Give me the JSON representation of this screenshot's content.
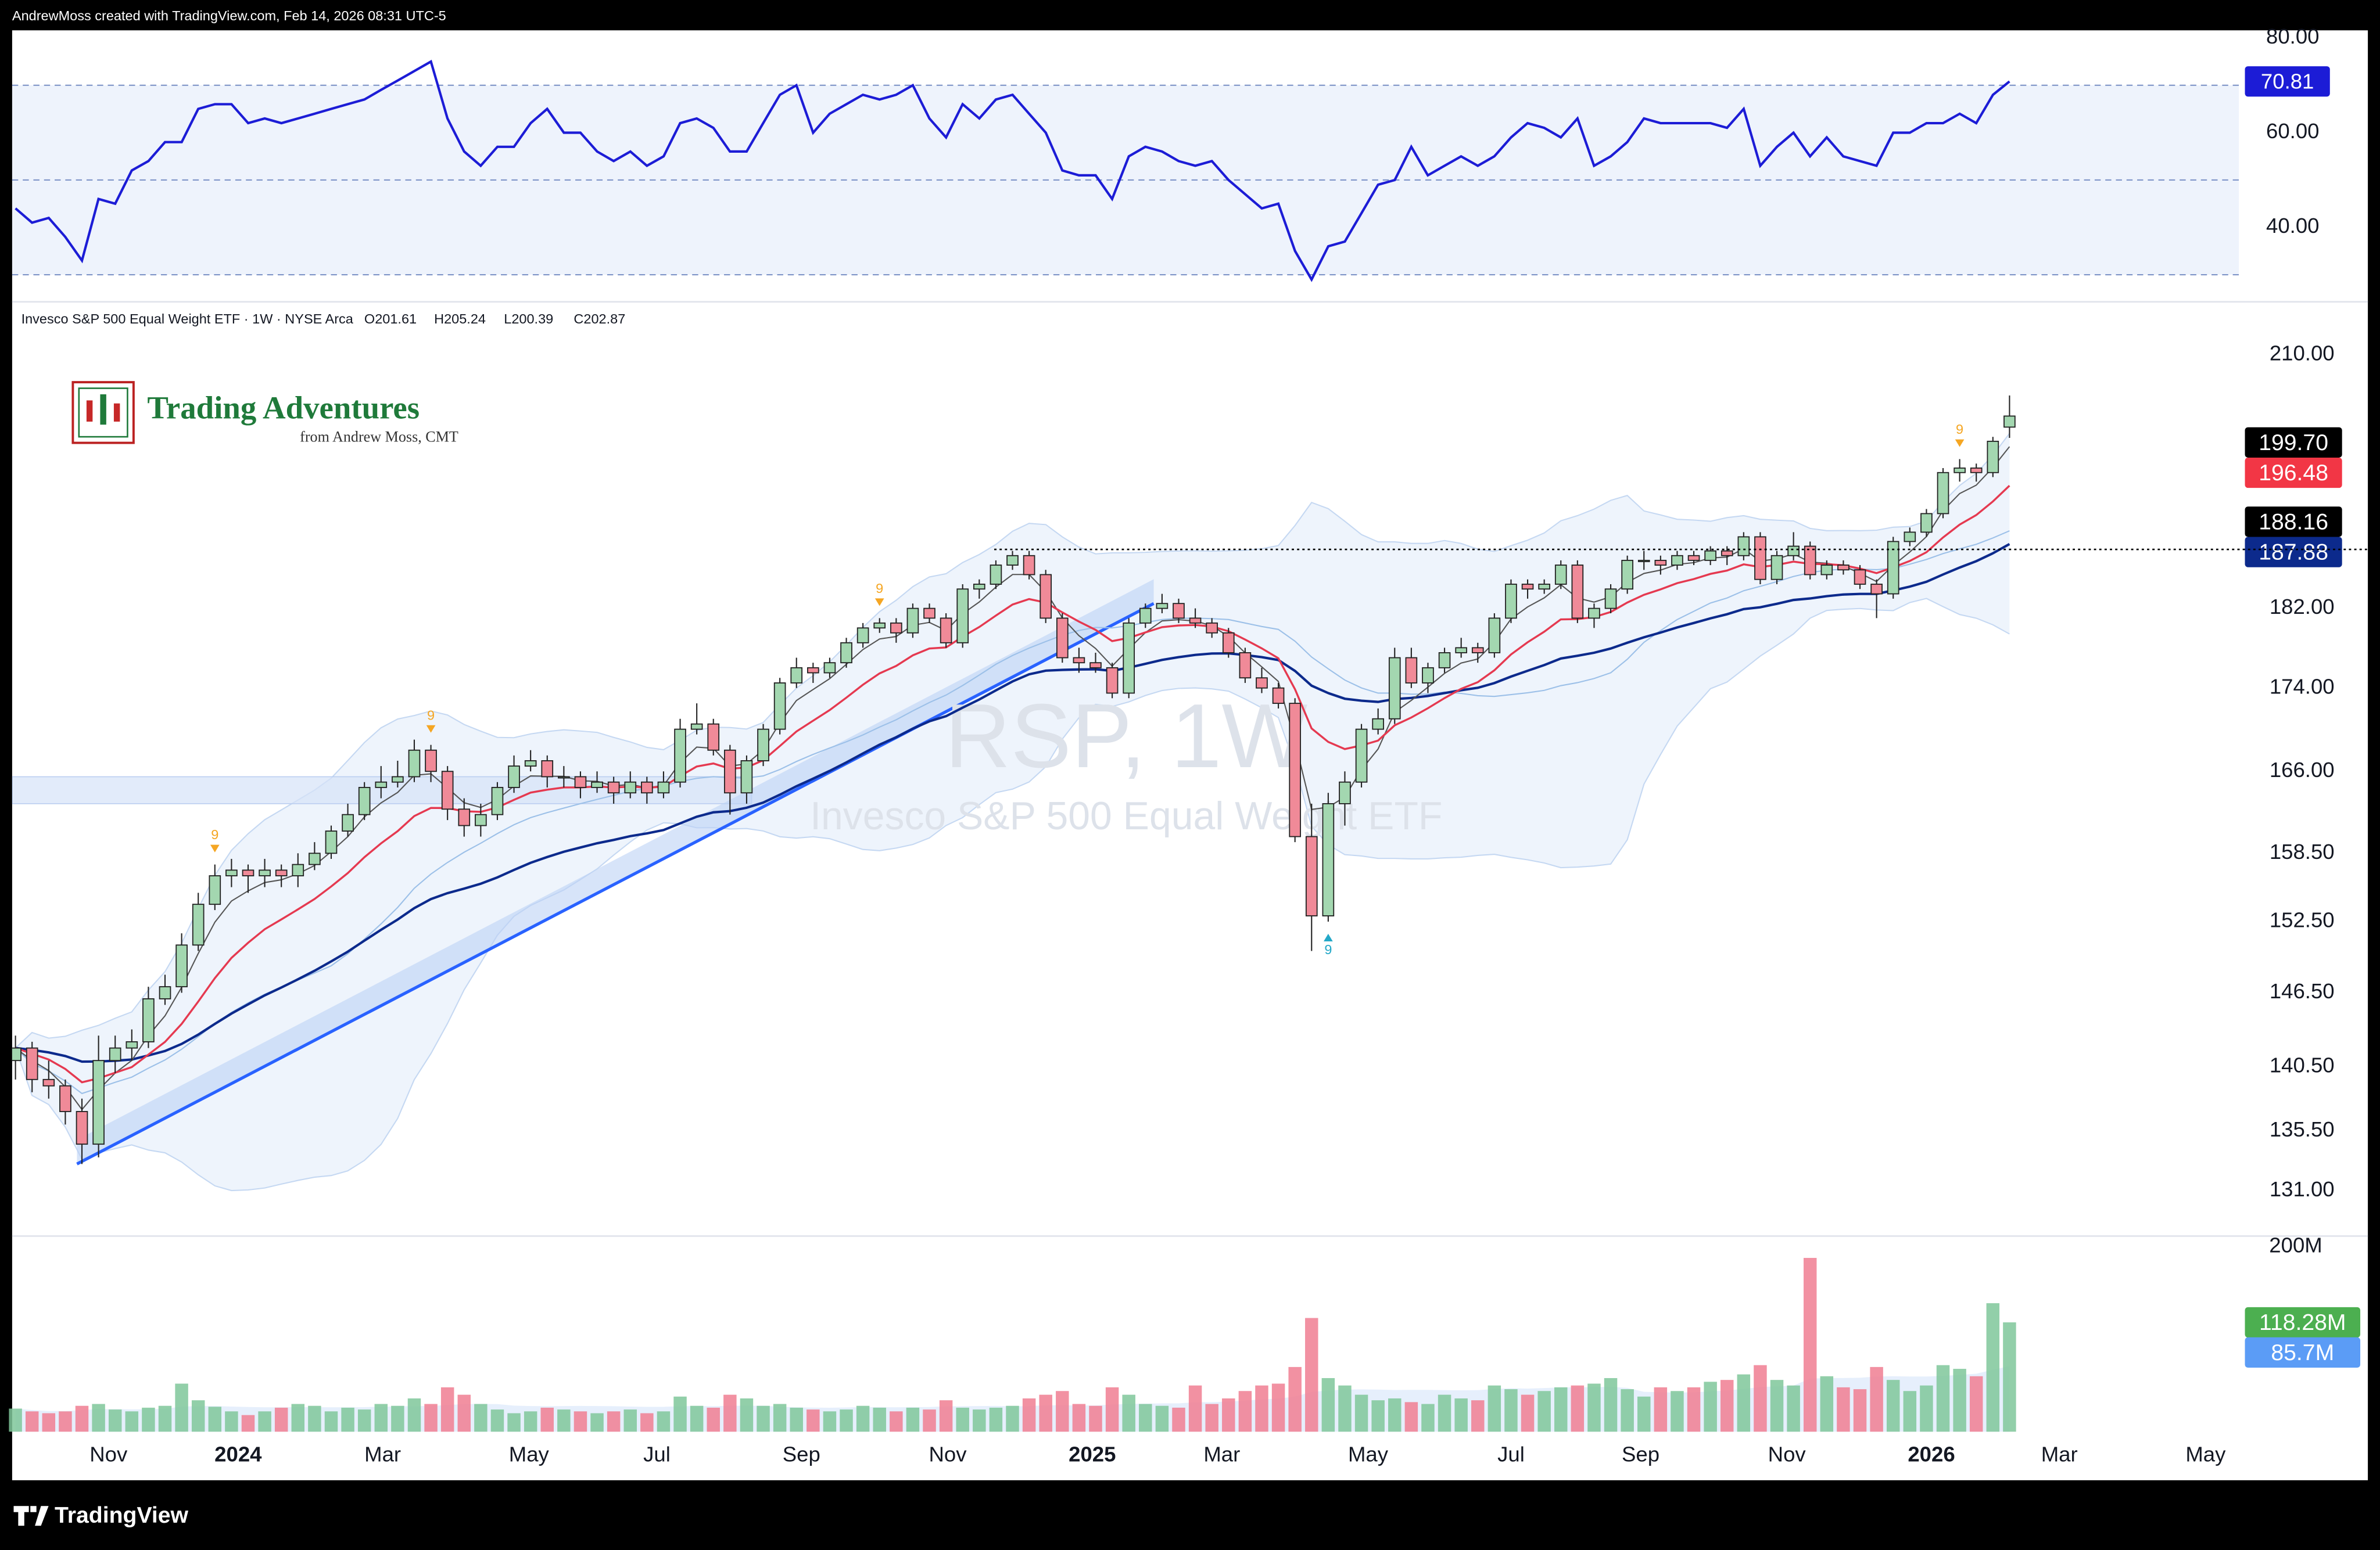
{
  "chart_data": {
    "type": "candlestick",
    "header": "AndrewMoss created with TradingView.com, Feb 14, 2026 08:31 UTC-5",
    "title": "Invesco S&P 500 Equal Weight ETF · 1W · NYSE Arca",
    "ohlc_legend": [
      "O201.61",
      "H205.24",
      "L200.39",
      "C202.87"
    ],
    "watermark": [
      "RSP, 1W",
      "Invesco S&P 500 Equal Weight ETF"
    ],
    "logo": {
      "title": "Trading Adventures",
      "subtitle": "from Andrew Moss, CMT"
    },
    "footer": "TradingView",
    "log_scale": true,
    "up_color": "#a3d7b0",
    "down_color": "#f08a98",
    "xlim": [
      -0.2,
      133.8
    ],
    "xticks": [
      {
        "value": 5.6,
        "label": "Nov"
      },
      {
        "value": 13.4,
        "label": "2024"
      },
      {
        "value": 22.1,
        "label": "Mar"
      },
      {
        "value": 30.9,
        "label": "May"
      },
      {
        "value": 38.6,
        "label": "Jul"
      },
      {
        "value": 47.3,
        "label": "Sep"
      },
      {
        "value": 56.1,
        "label": "Nov"
      },
      {
        "value": 64.8,
        "label": "2025"
      },
      {
        "value": 72.6,
        "label": "Mar"
      },
      {
        "value": 81.4,
        "label": "May"
      },
      {
        "value": 90.0,
        "label": "Jul"
      },
      {
        "value": 97.8,
        "label": "Sep"
      },
      {
        "value": 106.6,
        "label": "Nov"
      },
      {
        "value": 115.3,
        "label": "2026"
      },
      {
        "value": 123.0,
        "label": "Mar"
      },
      {
        "value": 131.8,
        "label": "May"
      }
    ],
    "ylim": [
      127.7,
      216.2
    ],
    "yticks": [
      {
        "value": 210,
        "label": "210.00"
      },
      {
        "value": 182,
        "label": "182.00"
      },
      {
        "value": 174,
        "label": "174.00"
      },
      {
        "value": 166,
        "label": "166.00"
      },
      {
        "value": 158.5,
        "label": "158.50"
      },
      {
        "value": 152.5,
        "label": "152.50"
      },
      {
        "value": 146.5,
        "label": "146.50"
      },
      {
        "value": 140.5,
        "label": "140.50"
      },
      {
        "value": 135.5,
        "label": "135.50"
      },
      {
        "value": 131,
        "label": "131.00"
      }
    ],
    "price_labels": [
      {
        "value": 199.7,
        "label": "199.70",
        "color": "#000000"
      },
      {
        "value": 196.48,
        "label": "196.48",
        "color": "#f23645"
      },
      {
        "value": 188.16,
        "label": "188.16",
        "color": "#000000"
      },
      {
        "value": 187.88,
        "label": "187.88",
        "color": "#0c2a8c"
      }
    ],
    "level_start": 58.9,
    "trendline": [
      [
        3.7,
        133
      ],
      [
        68.5,
        182.5
      ]
    ],
    "zone": {
      "x": [
        -0.2,
        44.3
      ],
      "y": [
        163,
        165.5
      ]
    },
    "td_marks": [
      {
        "x": 12,
        "count": 9,
        "pos": "above"
      },
      {
        "x": 25,
        "count": 9,
        "pos": "above"
      },
      {
        "x": 52,
        "count": 9,
        "pos": "above"
      },
      {
        "x": 117,
        "count": 9,
        "pos": "above"
      },
      {
        "x": 79,
        "count": 9,
        "pos": "below"
      }
    ],
    "ohlc": [
      [
        141,
        143,
        139.5,
        142
      ],
      [
        142,
        142.5,
        138.5,
        139.5
      ],
      [
        139.5,
        141,
        138,
        139
      ],
      [
        139,
        139.5,
        136,
        137
      ],
      [
        137,
        138,
        133,
        134.5
      ],
      [
        134.5,
        143,
        133.5,
        141
      ],
      [
        141,
        143,
        140,
        142
      ],
      [
        142,
        143.5,
        141,
        142.5
      ],
      [
        142.5,
        147,
        142,
        146
      ],
      [
        146,
        148,
        145.5,
        147
      ],
      [
        147,
        151.5,
        146.5,
        150.5
      ],
      [
        150.5,
        155,
        150,
        154
      ],
      [
        154,
        157.5,
        153.5,
        156.5
      ],
      [
        156.5,
        158,
        155.5,
        157
      ],
      [
        157,
        157.5,
        155,
        156.5
      ],
      [
        156.5,
        158,
        155.5,
        157
      ],
      [
        157,
        157.5,
        155.5,
        156.5
      ],
      [
        156.5,
        158.5,
        155.5,
        157.5
      ],
      [
        157.5,
        159.5,
        157,
        158.5
      ],
      [
        158.5,
        161,
        158,
        160.5
      ],
      [
        160.5,
        163,
        160,
        162
      ],
      [
        162,
        165,
        161.5,
        164.5
      ],
      [
        164.5,
        166.5,
        163.5,
        165
      ],
      [
        165,
        167,
        164.5,
        165.5
      ],
      [
        165.5,
        169,
        165,
        168
      ],
      [
        168,
        168.5,
        165,
        166
      ],
      [
        166,
        166.5,
        161.5,
        162.5
      ],
      [
        162.5,
        163.5,
        160,
        161
      ],
      [
        161,
        163,
        160,
        162
      ],
      [
        162,
        165,
        161.5,
        164.5
      ],
      [
        164.5,
        167.5,
        164,
        166.5
      ],
      [
        166.5,
        168,
        166,
        167
      ],
      [
        167,
        167.5,
        164.5,
        165.5
      ],
      [
        165.5,
        166.5,
        164.5,
        165.5
      ],
      [
        165.5,
        166,
        163.5,
        164.5
      ],
      [
        164.5,
        166,
        164,
        165
      ],
      [
        165,
        165.5,
        163,
        164
      ],
      [
        164,
        166,
        163.5,
        165
      ],
      [
        165,
        165.5,
        163,
        164
      ],
      [
        164,
        166,
        163.5,
        165
      ],
      [
        165,
        171,
        164.5,
        170
      ],
      [
        170,
        172.5,
        169.5,
        170.5
      ],
      [
        170.5,
        171,
        167.5,
        168
      ],
      [
        168,
        168.5,
        162,
        164
      ],
      [
        164,
        167.5,
        163,
        167
      ],
      [
        167,
        170.5,
        166.5,
        170
      ],
      [
        170,
        175,
        169.5,
        174.5
      ],
      [
        174.5,
        177,
        174,
        176
      ],
      [
        176,
        176.5,
        174.5,
        175.5
      ],
      [
        175.5,
        177,
        175,
        176.5
      ],
      [
        176.5,
        179,
        176,
        178.5
      ],
      [
        178.5,
        180.5,
        178,
        180
      ],
      [
        180,
        181,
        179.5,
        180.5
      ],
      [
        180.5,
        181,
        178.5,
        179.5
      ],
      [
        179.5,
        182.5,
        179,
        182
      ],
      [
        182,
        182.5,
        180.5,
        181
      ],
      [
        181,
        181.5,
        178,
        178.5
      ],
      [
        178.5,
        184.5,
        178,
        184
      ],
      [
        184,
        185,
        183,
        184.5
      ],
      [
        184.5,
        187,
        184,
        186.5
      ],
      [
        186.5,
        188,
        186,
        187.5
      ],
      [
        187.5,
        188,
        185,
        185.5
      ],
      [
        185.5,
        186,
        180.5,
        181
      ],
      [
        181,
        181.5,
        176.5,
        177
      ],
      [
        177,
        178,
        175.5,
        176.5
      ],
      [
        176.5,
        177.5,
        175.5,
        176
      ],
      [
        176,
        176.5,
        173,
        173.5
      ],
      [
        173.5,
        181,
        173,
        180.5
      ],
      [
        180.5,
        182.5,
        180,
        182
      ],
      [
        182,
        183.5,
        181.5,
        182.5
      ],
      [
        182.5,
        183,
        180.5,
        181
      ],
      [
        181,
        182,
        180,
        180.5
      ],
      [
        180.5,
        181,
        179,
        179.5
      ],
      [
        179.5,
        180,
        177,
        177.5
      ],
      [
        177.5,
        178,
        174.5,
        175
      ],
      [
        175,
        176,
        173.5,
        174
      ],
      [
        174,
        174.5,
        172,
        172.5
      ],
      [
        172.5,
        173,
        159.5,
        160
      ],
      [
        160,
        163,
        150,
        153
      ],
      [
        153,
        164,
        152.5,
        163
      ],
      [
        163,
        166,
        161,
        165
      ],
      [
        165,
        170.5,
        164.5,
        170
      ],
      [
        170,
        172,
        169.5,
        171
      ],
      [
        171,
        178,
        170.5,
        177
      ],
      [
        177,
        178,
        174,
        174.5
      ],
      [
        174.5,
        176.5,
        173.5,
        176
      ],
      [
        176,
        178,
        175.5,
        177.5
      ],
      [
        177.5,
        179,
        177,
        178
      ],
      [
        178,
        178.5,
        176.5,
        177.5
      ],
      [
        177.5,
        181.5,
        177,
        181
      ],
      [
        181,
        185,
        180.5,
        184.5
      ],
      [
        184.5,
        185,
        183,
        184
      ],
      [
        184,
        185,
        183.5,
        184.5
      ],
      [
        184.5,
        187,
        184,
        186.5
      ],
      [
        186.5,
        187,
        180.5,
        181
      ],
      [
        181,
        182.5,
        180,
        182
      ],
      [
        182,
        184.5,
        181.5,
        184
      ],
      [
        184,
        187.5,
        183.5,
        187
      ],
      [
        187,
        188,
        186,
        187
      ],
      [
        187,
        187.5,
        185.5,
        186.5
      ],
      [
        186.5,
        188,
        186,
        187.5
      ],
      [
        187.5,
        188,
        186.5,
        187
      ],
      [
        187,
        188.5,
        186.5,
        188
      ],
      [
        188,
        188.5,
        186.5,
        187.5
      ],
      [
        187.5,
        190,
        187,
        189.5
      ],
      [
        189.5,
        190,
        184.5,
        185
      ],
      [
        185,
        188,
        184.5,
        187.5
      ],
      [
        187.5,
        190,
        187,
        188.5
      ],
      [
        188.5,
        189,
        185,
        185.5
      ],
      [
        185.5,
        187,
        185,
        186.5
      ],
      [
        186.5,
        187,
        185.5,
        186
      ],
      [
        186,
        186.5,
        184,
        184.5
      ],
      [
        184.5,
        185,
        181,
        183.5
      ],
      [
        183.5,
        189.5,
        183,
        189
      ],
      [
        189,
        190.5,
        188.5,
        190
      ],
      [
        190,
        192.5,
        189.5,
        192
      ],
      [
        192,
        197,
        191.5,
        196.5
      ],
      [
        196.5,
        198,
        195.5,
        197
      ],
      [
        197,
        197.5,
        195.5,
        196.5
      ],
      [
        196.5,
        200.5,
        196,
        200
      ],
      [
        201.61,
        205.24,
        200.39,
        202.87
      ]
    ],
    "volume": {
      "ylim": [
        0,
        210
      ],
      "yticks": [
        {
          "value": 200,
          "label": "200M"
        }
      ],
      "values": [
        25,
        22,
        20,
        22,
        28,
        30,
        24,
        22,
        26,
        28,
        52,
        34,
        27,
        22,
        18,
        22,
        26,
        30,
        28,
        22,
        26,
        24,
        30,
        28,
        36,
        30,
        48,
        40,
        30,
        24,
        20,
        22,
        26,
        24,
        22,
        20,
        22,
        24,
        20,
        22,
        38,
        28,
        26,
        40,
        36,
        28,
        30,
        26,
        24,
        22,
        24,
        28,
        26,
        22,
        26,
        24,
        34,
        26,
        24,
        26,
        28,
        36,
        40,
        44,
        30,
        28,
        48,
        40,
        30,
        28,
        26,
        50,
        30,
        36,
        44,
        50,
        52,
        70,
        123,
        58,
        50,
        40,
        34,
        36,
        32,
        30,
        40,
        36,
        34,
        50,
        46,
        40,
        44,
        48,
        50,
        52,
        58,
        46,
        38,
        48,
        44,
        48,
        54,
        56,
        62,
        72,
        56,
        50,
        188,
        60,
        48,
        46,
        70,
        56,
        44,
        50,
        72,
        68,
        60,
        139,
        118.28
      ],
      "labels": [
        {
          "value": 118.28,
          "label": "118.28M",
          "color": "#4caf50"
        },
        {
          "value": 85.7,
          "label": "85.7M",
          "color": "#5b9cf6"
        }
      ]
    },
    "rsi": {
      "color": "#1c1cd6",
      "ylim": [
        24.6,
        81.6
      ],
      "yticks": [
        {
          "value": 80,
          "label": "80.00"
        },
        {
          "value": 60,
          "label": "60.00"
        },
        {
          "value": 40,
          "label": "40.00"
        }
      ],
      "levels": [
        70,
        50,
        30
      ],
      "values": [
        44,
        41,
        42,
        38,
        33,
        46,
        45,
        52,
        54,
        58,
        58,
        65,
        66,
        66,
        62,
        63,
        62,
        63,
        64,
        65,
        66,
        67,
        69,
        71,
        73,
        75,
        63,
        56,
        53,
        57,
        57,
        62,
        65,
        60,
        60,
        56,
        54,
        56,
        53,
        55,
        62,
        63,
        61,
        56,
        56,
        62,
        68,
        70,
        60,
        64,
        66,
        68,
        67,
        68,
        70,
        63,
        59,
        66,
        63,
        67,
        68,
        64,
        60,
        52,
        51,
        51,
        46,
        55,
        57,
        56,
        54,
        53,
        54,
        50,
        47,
        44,
        45,
        35,
        29,
        36,
        37,
        43,
        49,
        50,
        57,
        51,
        53,
        55,
        53,
        55,
        59,
        62,
        61,
        59,
        63,
        53,
        55,
        58,
        63,
        62,
        62,
        62,
        62,
        61,
        65,
        53,
        57,
        60,
        55,
        59,
        55,
        54,
        53,
        60,
        60,
        62,
        62,
        64,
        62,
        68,
        70.81
      ],
      "label": {
        "value": 70.81,
        "label": "70.81"
      }
    }
  }
}
